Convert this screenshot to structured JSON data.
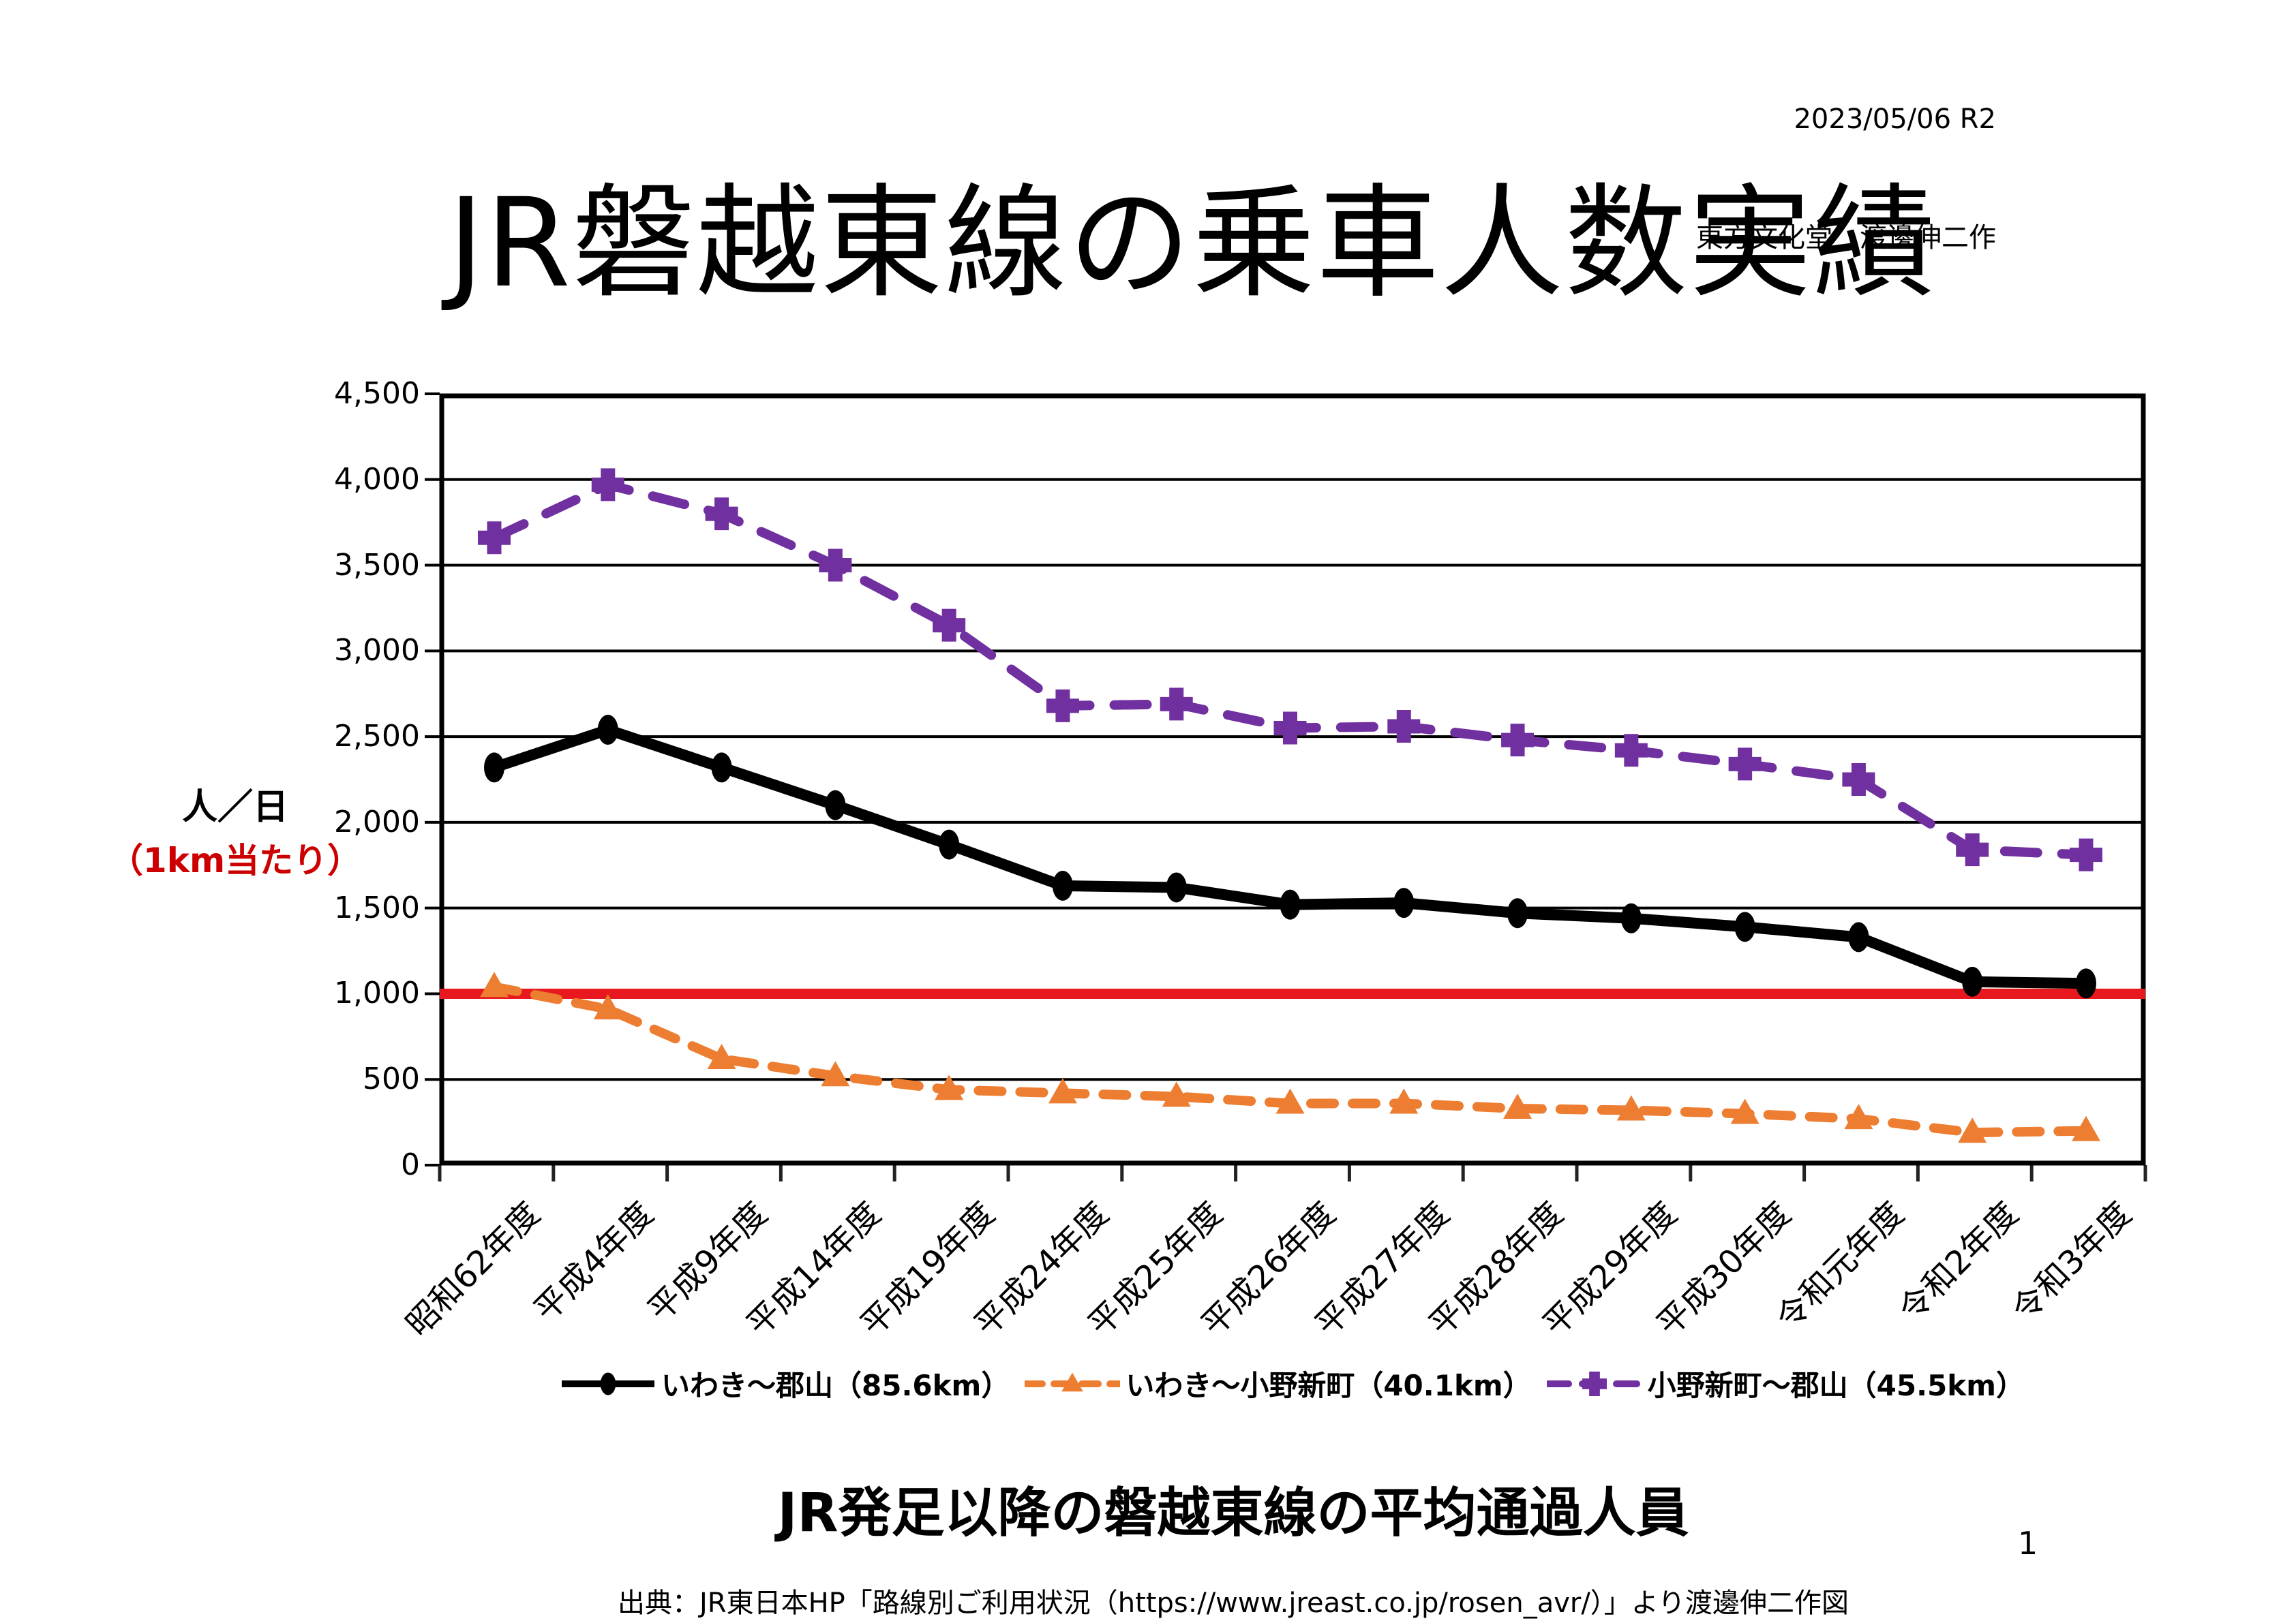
{
  "header": {
    "date": "2023/05/06 R2",
    "credit": "東方文化堂　渡邊伸二作"
  },
  "title": "JR磐越東線の乗車人数実績",
  "y_axis": {
    "label_main": "人／日",
    "label_sub": "（1km当たり）",
    "tick_labels": [
      "4,500",
      "4,000",
      "3,500",
      "3,000",
      "2,500",
      "2,000",
      "1,500",
      "1,000",
      "500",
      "0"
    ]
  },
  "chart_data": {
    "type": "line",
    "title": "JR磐越東線の乗車人数実績",
    "ylabel": "人／日（1km当たり）",
    "ylim": [
      0,
      4500
    ],
    "ytick_step": 500,
    "grid": true,
    "legend_position": "bottom",
    "categories": [
      "昭和62年度",
      "平成4年度",
      "平成9年度",
      "平成14年度",
      "平成19年度",
      "平成24年度",
      "平成25年度",
      "平成26年度",
      "平成27年度",
      "平成28年度",
      "平成29年度",
      "平成30年度",
      "令和元年度",
      "令和2年度",
      "令和3年度"
    ],
    "series": [
      {
        "name": "いわき～郡山（85.6km）",
        "color": "#000000",
        "line_style": "solid",
        "marker": "circle",
        "values": [
          2320,
          2540,
          2320,
          2100,
          1870,
          1630,
          1620,
          1520,
          1530,
          1470,
          1440,
          1390,
          1330,
          1070,
          1060
        ]
      },
      {
        "name": "いわき～小野新町（40.1km）",
        "color": "#ED7D31",
        "line_style": "dashed",
        "marker": "triangle",
        "values": [
          1040,
          910,
          620,
          520,
          440,
          420,
          400,
          360,
          360,
          330,
          320,
          300,
          270,
          190,
          200
        ]
      },
      {
        "name": "小野新町～郡山（45.5km）",
        "color": "#7030A0",
        "line_style": "dashed",
        "marker": "plus",
        "values": [
          3660,
          3970,
          3800,
          3500,
          3150,
          2680,
          2690,
          2550,
          2560,
          2480,
          2420,
          2340,
          2250,
          1840,
          1810
        ]
      }
    ],
    "reference_line": {
      "value": 1000,
      "color": "#E8191E"
    }
  },
  "caption": "JR発足以降の磐越東線の平均通過人員",
  "source": "出典：JR東日本HP「路線別ご利用状況（https://www.jreast.co.jp/rosen_avr/）」より渡邊伸二作図",
  "page_number": "1",
  "colors": {
    "sub_label_red": "#CC0000",
    "reference_red": "#E8191E",
    "series_black": "#000000",
    "series_orange": "#ED7D31",
    "series_purple": "#7030A0"
  }
}
